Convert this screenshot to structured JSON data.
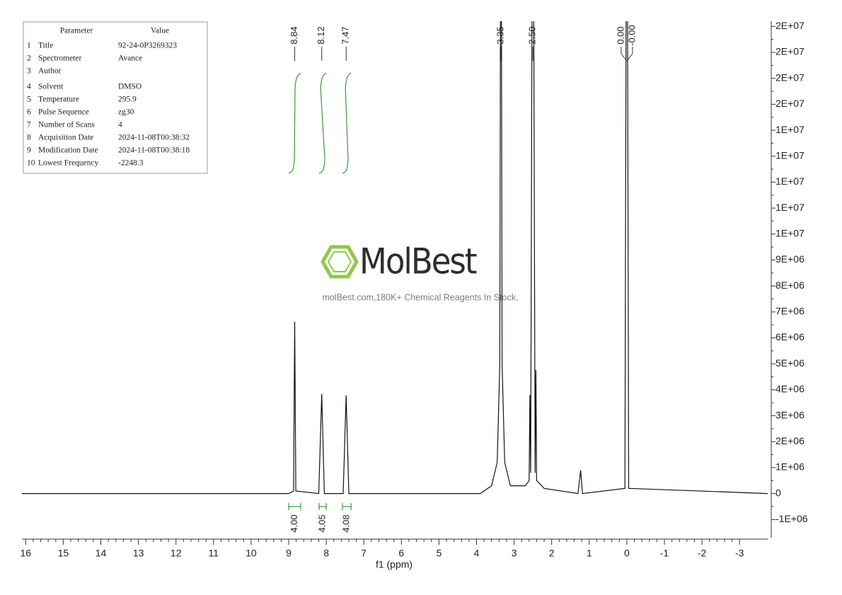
{
  "chart_data": {
    "type": "line",
    "x_label": "f1 (ppm)",
    "x": [
      16.1,
      9.0,
      8.87,
      8.84,
      8.81,
      8.2,
      8.12,
      8.05,
      7.55,
      7.47,
      7.4,
      3.9,
      3.6,
      3.45,
      3.38,
      3.35,
      3.32,
      3.25,
      3.1,
      2.7,
      2.6,
      2.58,
      2.56,
      2.5,
      2.44,
      2.42,
      2.4,
      2.2,
      1.3,
      1.23,
      1.18,
      0.05,
      0.0,
      -0.05,
      -3.75
    ],
    "values": [
      0,
      0,
      100000,
      6620000,
      100000,
      0,
      3840000,
      0,
      0,
      3780000,
      0,
      0,
      300000,
      1200000,
      5000000,
      30000000,
      5000000,
      1200000,
      300000,
      300000,
      500000,
      3800000,
      800000,
      30000000,
      800000,
      4760000,
      500000,
      200000,
      0,
      900000,
      0,
      200000,
      30000000,
      200000,
      0
    ],
    "color": "#111111",
    "xlim": [
      16.1,
      -3.75
    ],
    "xticks": [
      16,
      15,
      14,
      13,
      12,
      11,
      10,
      9,
      8,
      7,
      6,
      5,
      4,
      3,
      2,
      1,
      0,
      -1,
      -2,
      -3
    ],
    "ylim": [
      -1700000,
      18200000
    ],
    "yticks": [
      {
        "value": -1000000,
        "label": "-1E+06"
      },
      0,
      {
        "value": 1000000,
        "label": "1E+06"
      },
      {
        "value": 2000000,
        "label": "2E+06"
      },
      {
        "value": 3000000,
        "label": "3E+06"
      },
      {
        "value": 4000000,
        "label": "4E+06"
      },
      {
        "value": 5000000,
        "label": "5E+06"
      },
      {
        "value": 6000000,
        "label": "6E+06"
      },
      {
        "value": 7000000,
        "label": "7E+06"
      },
      {
        "value": 8000000,
        "label": "8E+06"
      },
      {
        "value": 9000000,
        "label": "9E+06"
      },
      {
        "value": 10000000,
        "label": "1E+07"
      },
      {
        "value": 11000000,
        "label": "1E+07"
      },
      {
        "value": 12000000,
        "label": "1E+07"
      },
      {
        "value": 13000000,
        "label": "1E+07"
      },
      {
        "value": 14000000,
        "label": "1E+07"
      },
      {
        "value": 15000000,
        "label": "2E+07"
      },
      {
        "value": 16000000,
        "label": "2E+07"
      },
      {
        "value": 17000000,
        "label": "2E+07"
      },
      {
        "value": 18000000,
        "label": "2E+07"
      }
    ],
    "peak_labels": [
      8.84,
      8.12,
      7.47,
      3.35,
      {
        "value": 2.5,
        "label": "2.50"
      },
      {
        "value": 0,
        "label": "0.00"
      },
      {
        "value": 0,
        "label": "-0.00"
      }
    ],
    "integrals": {
      "ranges": [
        [
          9.0,
          8.68
        ],
        [
          8.19,
          8.0
        ],
        [
          7.57,
          7.34
        ]
      ],
      "values": [
        4,
        4.05,
        4.08
      ],
      "value_labels": [
        "4.00",
        "4.05",
        "4.08"
      ],
      "color": "#3a9a3a"
    }
  },
  "parameter_table": {
    "header": [
      "Parameter",
      "Value"
    ],
    "rows": [
      [
        "1",
        "Title",
        "92-24-0P3269323"
      ],
      [
        "2",
        "Spectrometer",
        "Avance"
      ],
      [
        "3",
        "Author"
      ],
      [
        "4",
        "Solvent",
        "DMSO"
      ],
      [
        "5",
        "Temperature",
        "295.9"
      ],
      [
        "6",
        "Pulse Sequence",
        "zg30"
      ],
      [
        "7",
        "Number of Scans",
        "4"
      ],
      [
        "8",
        "Acquisition Date",
        "2024-11-08T00:38:32"
      ],
      [
        "9",
        "Modification Date",
        "2024-11-08T00:38:18"
      ],
      [
        "10",
        "Lowest Frequency",
        "-2248.3"
      ]
    ]
  },
  "watermark": {
    "brand": "MolBest",
    "tagline": "molBest.com,180K+ Chemical Reagents In Stock."
  }
}
